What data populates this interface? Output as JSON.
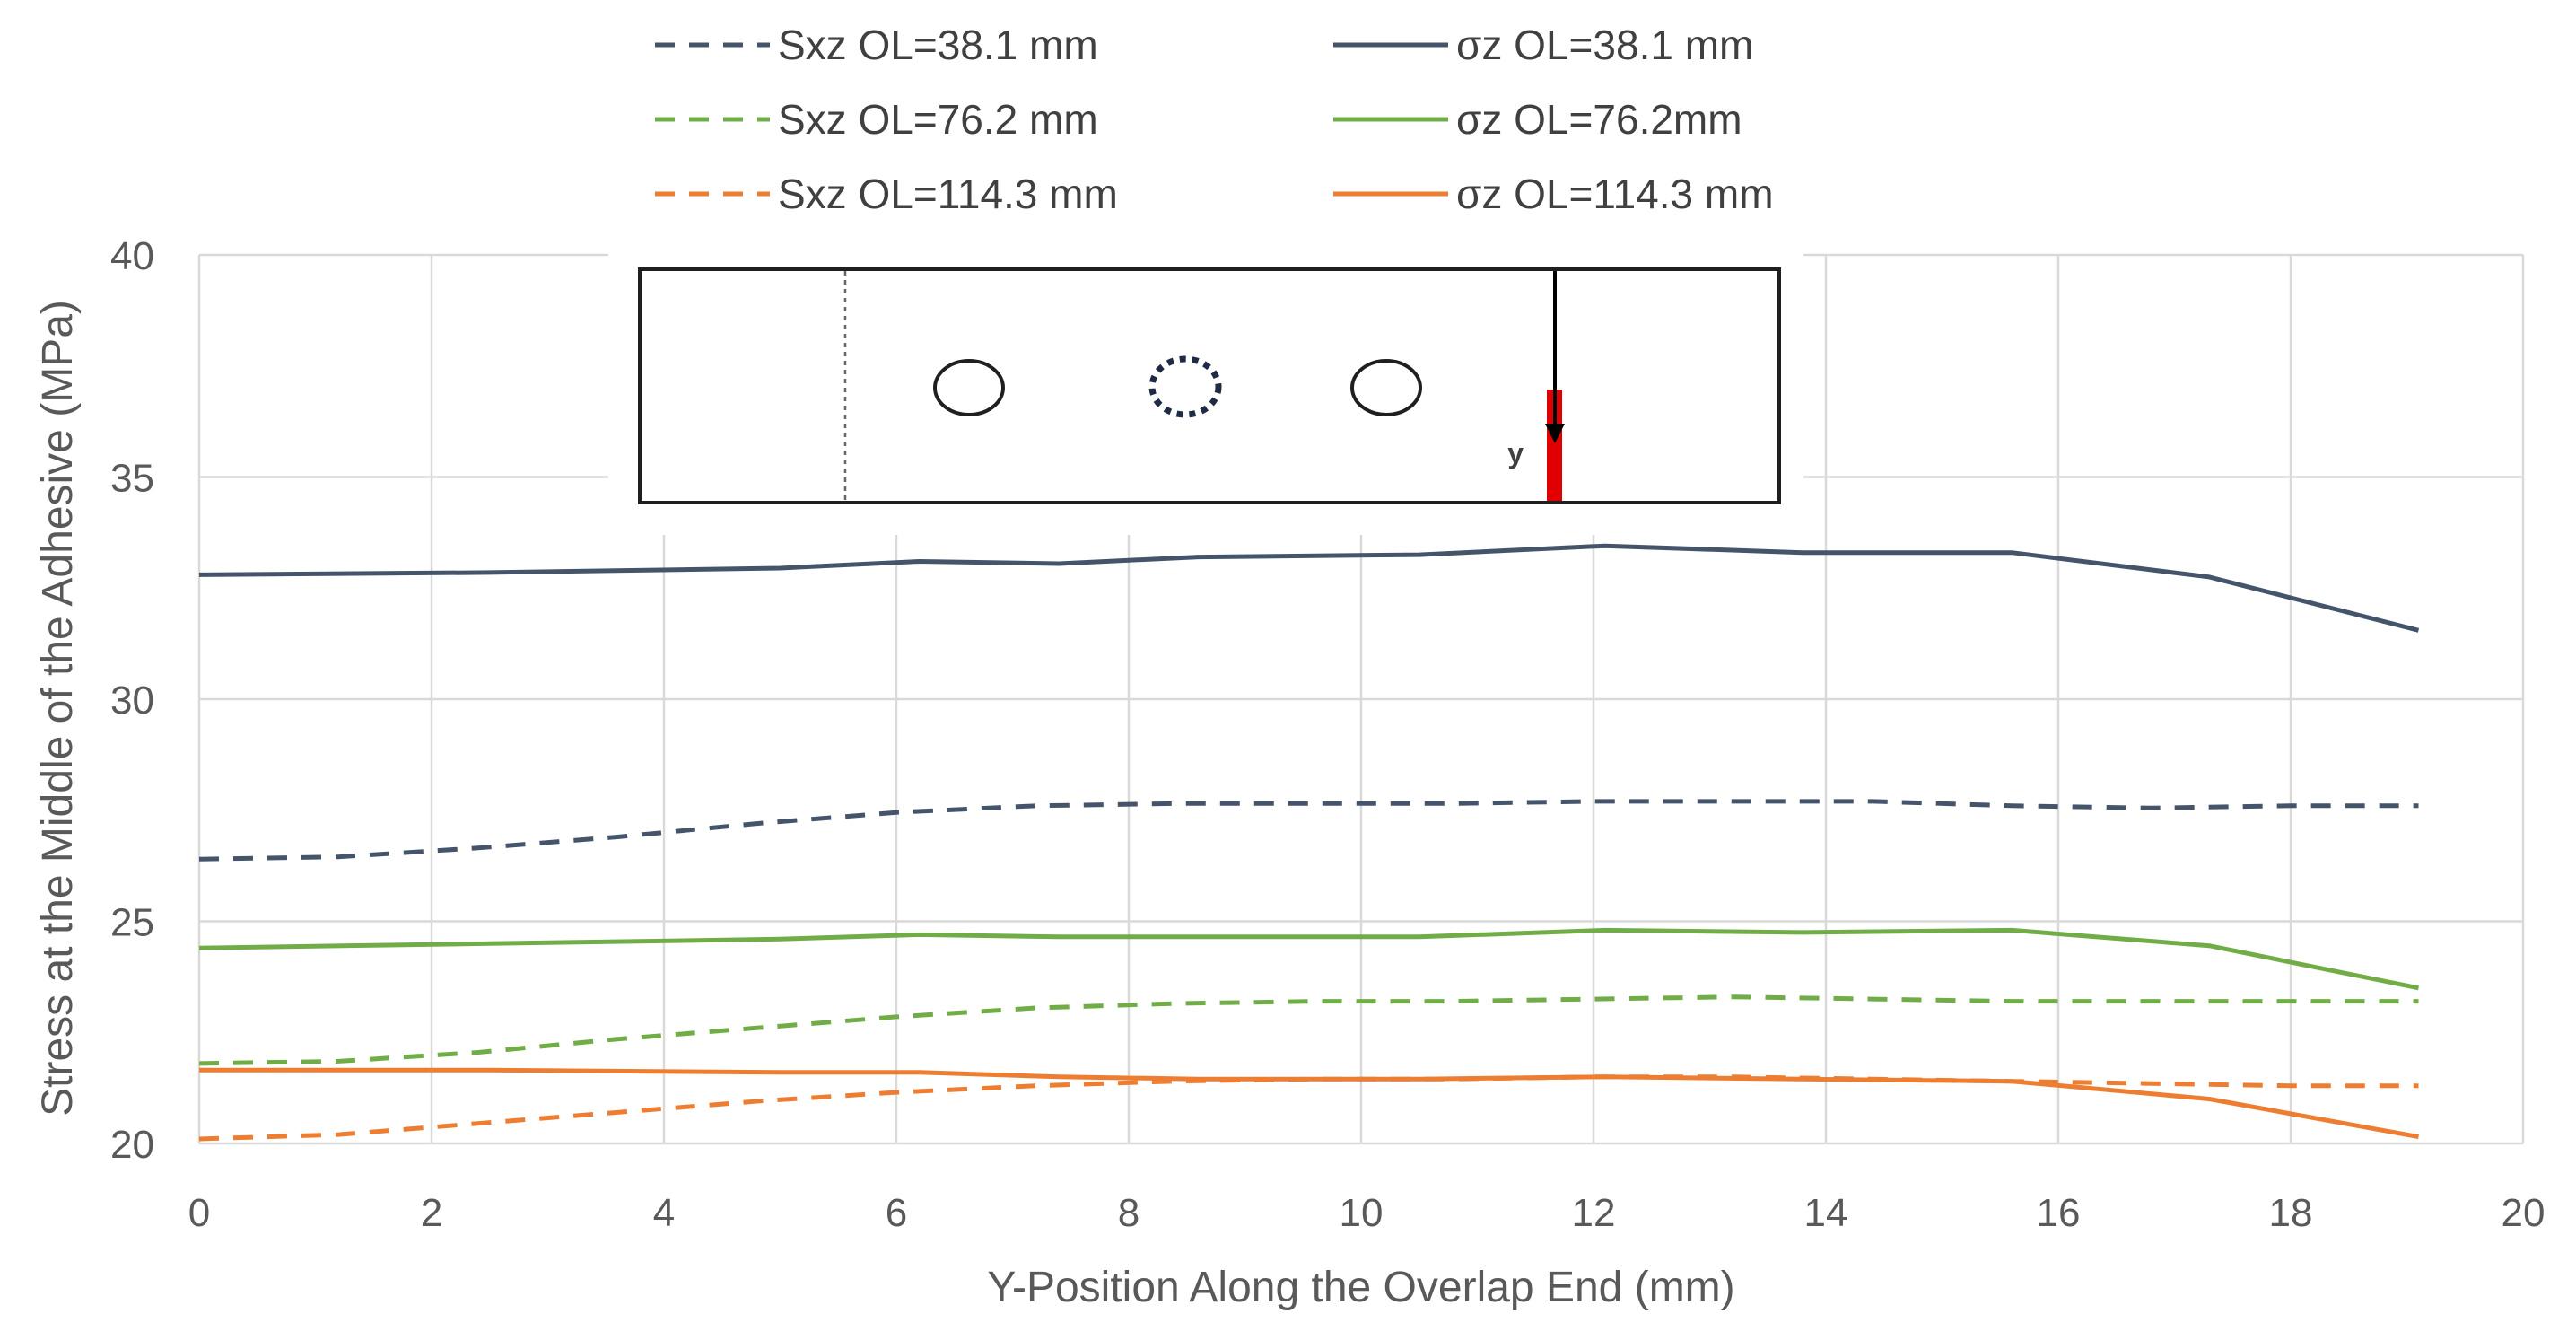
{
  "chart_data": {
    "type": "line",
    "title": "",
    "xlabel": "Y-Position Along the Overlap End (mm)",
    "ylabel": "Stress at the Middle of the Adhesive (MPa)",
    "xlim": [
      0,
      20
    ],
    "ylim": [
      20,
      40
    ],
    "xticks": [
      0,
      2,
      4,
      6,
      8,
      10,
      12,
      14,
      16,
      18,
      20
    ],
    "yticks": [
      20,
      25,
      30,
      35,
      40
    ],
    "grid": true,
    "legend_position": "top",
    "series": [
      {
        "name": "Sxz OL=38.1 mm",
        "color": "#44546a",
        "dash": true,
        "x": [
          0,
          1.2,
          2.4,
          3.6,
          4.8,
          6.0,
          7.2,
          8.4,
          9.6,
          10.8,
          12.0,
          13.2,
          14.4,
          15.6,
          16.8,
          18.0,
          19.1
        ],
        "y": [
          26.4,
          26.45,
          26.65,
          26.9,
          27.2,
          27.45,
          27.6,
          27.65,
          27.65,
          27.65,
          27.7,
          27.7,
          27.7,
          27.6,
          27.55,
          27.6,
          27.6
        ]
      },
      {
        "name": "σz OL=38.1 mm",
        "color": "#44546a",
        "dash": false,
        "x": [
          0,
          2.5,
          5.0,
          6.2,
          7.4,
          8.6,
          10.5,
          12.1,
          13.8,
          15.6,
          17.3,
          19.1
        ],
        "y": [
          32.8,
          32.85,
          32.95,
          33.1,
          33.05,
          33.2,
          33.25,
          33.45,
          33.3,
          33.3,
          32.75,
          31.55
        ]
      },
      {
        "name": "Sxz OL=76.2 mm",
        "color": "#70ad47",
        "dash": true,
        "x": [
          0,
          1.2,
          2.4,
          3.6,
          4.8,
          6.0,
          7.2,
          8.4,
          9.6,
          10.8,
          12.0,
          13.2,
          14.4,
          15.6,
          16.8,
          18.0,
          19.1
        ],
        "y": [
          21.8,
          21.85,
          22.05,
          22.35,
          22.6,
          22.85,
          23.05,
          23.15,
          23.2,
          23.2,
          23.25,
          23.3,
          23.25,
          23.2,
          23.2,
          23.2,
          23.2
        ]
      },
      {
        "name": "σz OL=76.2mm",
        "color": "#70ad47",
        "dash": false,
        "x": [
          0,
          2.5,
          5.0,
          6.2,
          7.4,
          8.6,
          10.5,
          12.1,
          13.8,
          15.6,
          17.3,
          19.1
        ],
        "y": [
          24.4,
          24.5,
          24.6,
          24.7,
          24.65,
          24.65,
          24.65,
          24.8,
          24.75,
          24.8,
          24.45,
          23.5
        ]
      },
      {
        "name": "Sxz OL=114.3 mm",
        "color": "#ed7d31",
        "dash": true,
        "x": [
          0,
          1.2,
          2.4,
          3.6,
          4.8,
          6.0,
          7.2,
          8.4,
          9.6,
          10.8,
          12.0,
          13.2,
          14.4,
          15.6,
          16.8,
          18.0,
          19.1
        ],
        "y": [
          20.1,
          20.2,
          20.45,
          20.7,
          20.95,
          21.15,
          21.3,
          21.4,
          21.45,
          21.45,
          21.5,
          21.5,
          21.45,
          21.4,
          21.35,
          21.3,
          21.3
        ]
      },
      {
        "name": "σz OL=114.3 mm",
        "color": "#ed7d31",
        "dash": false,
        "x": [
          0,
          2.5,
          5.0,
          6.2,
          7.4,
          8.6,
          10.5,
          12.1,
          13.8,
          15.6,
          17.3,
          19.1
        ],
        "y": [
          21.65,
          21.65,
          21.6,
          21.6,
          21.5,
          21.45,
          21.45,
          21.5,
          21.45,
          21.4,
          21.0,
          20.15
        ]
      }
    ],
    "inset": {
      "axis_label": "y"
    }
  }
}
